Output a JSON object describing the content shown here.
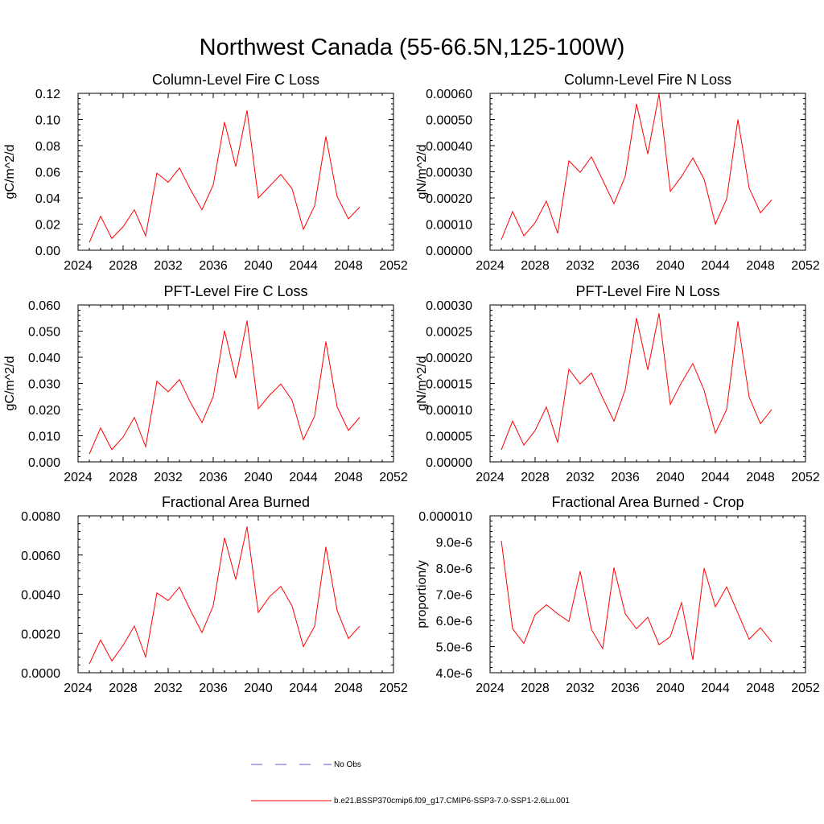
{
  "figure_title": "Northwest Canada (55-66.5N,125-100W)",
  "legend": [
    {
      "label": "No Obs",
      "color": "#5a5ad8",
      "style": "dashed"
    },
    {
      "label": "b.e21.BSSP370cmip6.f09_g17.CMIP6-SSP3-7.0-SSP1-2.6Lu.001",
      "color": "#ff0000",
      "style": "solid"
    }
  ],
  "chart_data": [
    {
      "type": "line",
      "title": "Column-Level Fire C Loss",
      "xlabel": "",
      "ylabel": "gC/m^2/d",
      "xlim": [
        2024,
        2052
      ],
      "ylim": [
        0,
        0.12
      ],
      "xticks": [
        2024,
        2028,
        2032,
        2036,
        2040,
        2044,
        2048,
        2052
      ],
      "yticks": [
        0,
        0.02,
        0.04,
        0.06,
        0.08,
        0.1,
        0.12
      ],
      "ytick_labels": [
        "0.00",
        "0.02",
        "0.04",
        "0.06",
        "0.08",
        "0.10",
        "0.12"
      ],
      "x": [
        2025,
        2026,
        2027,
        2028,
        2029,
        2030,
        2031,
        2032,
        2033,
        2034,
        2035,
        2036,
        2037,
        2038,
        2039,
        2040,
        2041,
        2042,
        2043,
        2044,
        2045,
        2046,
        2047,
        2048,
        2049
      ],
      "series": [
        {
          "color": "#ff0000",
          "values": [
            0.006,
            0.026,
            0.009,
            0.018,
            0.031,
            0.011,
            0.059,
            0.052,
            0.063,
            0.046,
            0.031,
            0.05,
            0.098,
            0.064,
            0.107,
            0.04,
            0.049,
            0.058,
            0.047,
            0.016,
            0.034,
            0.087,
            0.041,
            0.024,
            0.033
          ]
        }
      ]
    },
    {
      "type": "line",
      "title": "Column-Level Fire N Loss",
      "xlabel": "",
      "ylabel": "gN/m^2/d",
      "xlim": [
        2024,
        2052
      ],
      "ylim": [
        0,
        0.0006
      ],
      "xticks": [
        2024,
        2028,
        2032,
        2036,
        2040,
        2044,
        2048,
        2052
      ],
      "yticks": [
        0,
        0.0001,
        0.0002,
        0.0003,
        0.0004,
        0.0005,
        0.0006
      ],
      "ytick_labels": [
        "0.00000",
        "0.00010",
        "0.00020",
        "0.00030",
        "0.00040",
        "0.00050",
        "0.00060"
      ],
      "x": [
        2025,
        2026,
        2027,
        2028,
        2029,
        2030,
        2031,
        2032,
        2033,
        2034,
        2035,
        2036,
        2037,
        2038,
        2039,
        2040,
        2041,
        2042,
        2043,
        2044,
        2045,
        2046,
        2047,
        2048,
        2049
      ],
      "series": [
        {
          "color": "#ff0000",
          "values": [
            4e-05,
            0.000148,
            5.5e-05,
            0.000105,
            0.000188,
            6.5e-05,
            0.000342,
            0.000298,
            0.000357,
            0.000268,
            0.000178,
            0.000283,
            0.00056,
            0.000368,
            0.000598,
            0.000225,
            0.000282,
            0.000353,
            0.000272,
            0.0001,
            0.000196,
            0.0005,
            0.000238,
            0.000143,
            0.000193
          ]
        }
      ]
    },
    {
      "type": "line",
      "title": "PFT-Level Fire C Loss",
      "xlabel": "",
      "ylabel": "gC/m^2/d",
      "xlim": [
        2024,
        2052
      ],
      "ylim": [
        0,
        0.06
      ],
      "xticks": [
        2024,
        2028,
        2032,
        2036,
        2040,
        2044,
        2048,
        2052
      ],
      "yticks": [
        0,
        0.01,
        0.02,
        0.03,
        0.04,
        0.05,
        0.06
      ],
      "ytick_labels": [
        "0.000",
        "0.010",
        "0.020",
        "0.030",
        "0.040",
        "0.050",
        "0.060"
      ],
      "x": [
        2025,
        2026,
        2027,
        2028,
        2029,
        2030,
        2031,
        2032,
        2033,
        2034,
        2035,
        2036,
        2037,
        2038,
        2039,
        2040,
        2041,
        2042,
        2043,
        2044,
        2045,
        2046,
        2047,
        2048,
        2049
      ],
      "series": [
        {
          "color": "#ff0000",
          "values": [
            0.003,
            0.013,
            0.0047,
            0.0095,
            0.017,
            0.0058,
            0.0308,
            0.0268,
            0.0315,
            0.0225,
            0.015,
            0.025,
            0.0502,
            0.032,
            0.054,
            0.0203,
            0.0255,
            0.0298,
            0.0235,
            0.0085,
            0.0175,
            0.046,
            0.021,
            0.012,
            0.017
          ]
        }
      ]
    },
    {
      "type": "line",
      "title": "PFT-Level Fire N Loss",
      "xlabel": "",
      "ylabel": "gN/m^2/d",
      "xlim": [
        2024,
        2052
      ],
      "ylim": [
        0,
        0.0003
      ],
      "xticks": [
        2024,
        2028,
        2032,
        2036,
        2040,
        2044,
        2048,
        2052
      ],
      "yticks": [
        0,
        5e-05,
        0.0001,
        0.00015,
        0.0002,
        0.00025,
        0.0003
      ],
      "ytick_labels": [
        "0.00000",
        "0.00005",
        "0.00010",
        "0.00015",
        "0.00020",
        "0.00025",
        "0.00030"
      ],
      "x": [
        2025,
        2026,
        2027,
        2028,
        2029,
        2030,
        2031,
        2032,
        2033,
        2034,
        2035,
        2036,
        2037,
        2038,
        2039,
        2040,
        2041,
        2042,
        2043,
        2044,
        2045,
        2046,
        2047,
        2048,
        2049
      ],
      "series": [
        {
          "color": "#ff0000",
          "values": [
            2.3e-05,
            7.8e-05,
            3.2e-05,
            6e-05,
            0.000105,
            3.7e-05,
            0.000177,
            0.000149,
            0.00017,
            0.000122,
            7.8e-05,
            0.000138,
            0.000275,
            0.000176,
            0.000284,
            0.00011,
            0.000152,
            0.000188,
            0.000137,
            5.5e-05,
            0.0001,
            0.000269,
            0.000124,
            7.3e-05,
            0.0001
          ]
        }
      ]
    },
    {
      "type": "line",
      "title": "Fractional Area Burned",
      "xlabel": "",
      "ylabel": "",
      "xlim": [
        2024,
        2052
      ],
      "ylim": [
        0,
        0.008
      ],
      "xticks": [
        2024,
        2028,
        2032,
        2036,
        2040,
        2044,
        2048,
        2052
      ],
      "yticks": [
        0,
        0.002,
        0.004,
        0.006,
        0.008
      ],
      "ytick_labels": [
        "0.0000",
        "0.0020",
        "0.0040",
        "0.0060",
        "0.0080"
      ],
      "x": [
        2025,
        2026,
        2027,
        2028,
        2029,
        2030,
        2031,
        2032,
        2033,
        2034,
        2035,
        2036,
        2037,
        2038,
        2039,
        2040,
        2041,
        2042,
        2043,
        2044,
        2045,
        2046,
        2047,
        2048,
        2049
      ],
      "series": [
        {
          "color": "#ff0000",
          "values": [
            0.00045,
            0.00167,
            0.0006,
            0.0014,
            0.00238,
            0.0008,
            0.00407,
            0.00368,
            0.00436,
            0.00315,
            0.00205,
            0.00342,
            0.00688,
            0.00475,
            0.00745,
            0.00307,
            0.00388,
            0.0044,
            0.0034,
            0.00133,
            0.00237,
            0.00642,
            0.00317,
            0.00174,
            0.00237
          ]
        }
      ]
    },
    {
      "type": "line",
      "title": "Fractional Area Burned - Crop",
      "xlabel": "",
      "ylabel": "proportion/y",
      "xlim": [
        2024,
        2052
      ],
      "ylim": [
        4e-06,
        1e-05
      ],
      "xticks": [
        2024,
        2028,
        2032,
        2036,
        2040,
        2044,
        2048,
        2052
      ],
      "yticks": [
        4e-06,
        5e-06,
        6e-06,
        7e-06,
        8e-06,
        9e-06,
        1e-05
      ],
      "ytick_labels": [
        "4.0e-6",
        "5.0e-6",
        "6.0e-6",
        "7.0e-6",
        "8.0e-6",
        "9.0e-6",
        "0.000010"
      ],
      "x": [
        2025,
        2026,
        2027,
        2028,
        2029,
        2030,
        2031,
        2032,
        2033,
        2034,
        2035,
        2036,
        2037,
        2038,
        2039,
        2040,
        2041,
        2042,
        2043,
        2044,
        2045,
        2046,
        2047,
        2048,
        2049
      ],
      "series": [
        {
          "color": "#ff0000",
          "values": [
            9.05e-06,
            5.68e-06,
            5.12e-06,
            6.22e-06,
            6.6e-06,
            6.25e-06,
            5.96e-06,
            7.88e-06,
            5.65e-06,
            4.92e-06,
            8.02e-06,
            6.25e-06,
            5.68e-06,
            6.12e-06,
            5.07e-06,
            5.38e-06,
            6.68e-06,
            4.49e-06,
            8e-06,
            6.52e-06,
            7.28e-06,
            6.28e-06,
            5.28e-06,
            5.72e-06,
            5.18e-06
          ]
        }
      ]
    }
  ]
}
